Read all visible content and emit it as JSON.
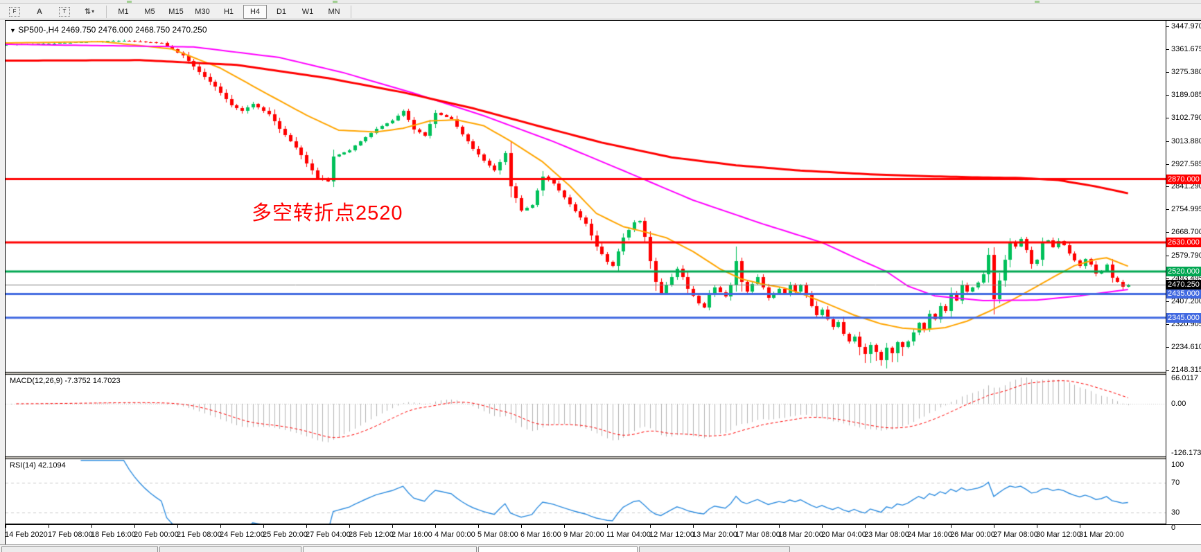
{
  "window": {
    "top_toolbar": {
      "tools": [
        {
          "name": "chart-grid-f-icon",
          "glyph": "F"
        },
        {
          "name": "text-a-icon",
          "glyph": "A"
        },
        {
          "name": "text-label-icon",
          "glyph": "T"
        },
        {
          "name": "cursor-arrows-icon",
          "glyph": "⇅"
        },
        {
          "name": "dropdown-caret-icon",
          "glyph": "▾"
        }
      ],
      "timeframes": [
        "M1",
        "M5",
        "M15",
        "M30",
        "H1",
        "H4",
        "D1",
        "W1",
        "MN"
      ],
      "active_timeframe": "H4"
    }
  },
  "chart": {
    "symbol_header": {
      "dropdown_glyph": "▼",
      "text": "SP500-,H4  2469.750 2476.000 2468.750 2470.250"
    },
    "ohlc": {
      "open": "2469.750",
      "high": "2476.000",
      "low": "2468.750",
      "close": "2470.250"
    },
    "annotation": {
      "text": "多空转折点2520",
      "color": "#FF0000"
    }
  },
  "chart_data": {
    "type": "candlestick+indicators",
    "symbol": "SP500-",
    "timeframe": "H4",
    "price_axis_ticks": [
      "3447.970",
      "3361.675",
      "3275.380",
      "3189.085",
      "3102.790",
      "3013.880",
      "2927.585",
      "2841.290",
      "2754.995",
      "2668.700",
      "2579.790",
      "2493.495",
      "2407.200",
      "2320.905",
      "2234.610",
      "2148.315"
    ],
    "time_axis_labels": [
      "14 Feb 2020",
      "17 Feb 08:00",
      "18 Feb 16:00",
      "20 Feb 00:00",
      "21 Feb 08:00",
      "24 Feb 12:00",
      "25 Feb 20:00",
      "27 Feb 04:00",
      "28 Feb 12:00",
      "2 Mar 16:00",
      "4 Mar 00:00",
      "5 Mar 08:00",
      "6 Mar 16:00",
      "9 Mar 20:00",
      "11 Mar 04:00",
      "12 Mar 12:00",
      "13 Mar 20:00",
      "17 Mar 08:00",
      "18 Mar 20:00",
      "20 Mar 04:00",
      "23 Mar 08:00",
      "24 Mar 16:00",
      "26 Mar 00:00",
      "27 Mar 08:00",
      "30 Mar 12:00",
      "31 Mar 20:00"
    ],
    "horizontal_levels": [
      {
        "price": 2870.0,
        "label": "2870.000",
        "color": "#FF0000",
        "text_color": "#FFFFFF"
      },
      {
        "price": 2630.0,
        "label": "2630.000",
        "color": "#FF0000",
        "text_color": "#FFFFFF"
      },
      {
        "price": 2520.0,
        "label": "2520.000",
        "color": "#00A651",
        "text_color": "#FFFFFF"
      },
      {
        "price": 2435.0,
        "label": "2435.000",
        "color": "#4169E1",
        "text_color": "#FFFFFF"
      },
      {
        "price": 2345.0,
        "label": "2345.000",
        "color": "#4169E1",
        "text_color": "#FFFFFF"
      }
    ],
    "current_price_line": {
      "price": 2470.25,
      "label": "2470.250",
      "line_color": "#808080",
      "tag_bg": "#000000"
    },
    "candle_colors": {
      "up": "#00C05A",
      "down": "#FF0000"
    },
    "bars": {
      "count": 210,
      "anchors_close": [
        [
          0,
          3378
        ],
        [
          7,
          3382
        ],
        [
          14,
          3388
        ],
        [
          22,
          3394
        ],
        [
          29,
          3385
        ],
        [
          33,
          3337
        ],
        [
          36,
          3275
        ],
        [
          39,
          3220
        ],
        [
          42,
          3150
        ],
        [
          44,
          3128
        ],
        [
          46,
          3155
        ],
        [
          49,
          3116
        ],
        [
          51,
          3060
        ],
        [
          54,
          2990
        ],
        [
          56,
          2930
        ],
        [
          58,
          2875
        ],
        [
          60,
          2862
        ],
        [
          61,
          2954
        ],
        [
          64,
          2980
        ],
        [
          66,
          3012
        ],
        [
          69,
          3060
        ],
        [
          72,
          3092
        ],
        [
          74,
          3128
        ],
        [
          76,
          3058
        ],
        [
          78,
          3035
        ],
        [
          80,
          3120
        ],
        [
          83,
          3098
        ],
        [
          85,
          3040
        ],
        [
          87,
          2985
        ],
        [
          89,
          2940
        ],
        [
          91,
          2902
        ],
        [
          93,
          2968
        ],
        [
          94,
          2842
        ],
        [
          96,
          2752
        ],
        [
          98,
          2772
        ],
        [
          100,
          2880
        ],
        [
          102,
          2852
        ],
        [
          104,
          2800
        ],
        [
          106,
          2748
        ],
        [
          108,
          2700
        ],
        [
          110,
          2615
        ],
        [
          112,
          2558
        ],
        [
          113,
          2542
        ],
        [
          115,
          2648
        ],
        [
          117,
          2705
        ],
        [
          118,
          2712
        ],
        [
          119,
          2650
        ],
        [
          120,
          2560
        ],
        [
          121,
          2480
        ],
        [
          122,
          2440
        ],
        [
          123,
          2470
        ],
        [
          125,
          2530
        ],
        [
          126,
          2500
        ],
        [
          127,
          2455
        ],
        [
          129,
          2400
        ],
        [
          130,
          2385
        ],
        [
          131,
          2430
        ],
        [
          132,
          2460
        ],
        [
          134,
          2425
        ],
        [
          135,
          2470
        ],
        [
          136,
          2560
        ],
        [
          137,
          2480
        ],
        [
          138,
          2445
        ],
        [
          140,
          2500
        ],
        [
          141,
          2460
        ],
        [
          142,
          2420
        ],
        [
          144,
          2455
        ],
        [
          145,
          2440
        ],
        [
          146,
          2470
        ],
        [
          147,
          2445
        ],
        [
          148,
          2468
        ],
        [
          149,
          2430
        ],
        [
          150,
          2390
        ],
        [
          151,
          2355
        ],
        [
          152,
          2375
        ],
        [
          153,
          2340
        ],
        [
          154,
          2310
        ],
        [
          155,
          2330
        ],
        [
          156,
          2285
        ],
        [
          157,
          2255
        ],
        [
          158,
          2275
        ],
        [
          159,
          2235
        ],
        [
          160,
          2208
        ],
        [
          161,
          2242
        ],
        [
          162,
          2215
        ],
        [
          163,
          2185
        ],
        [
          164,
          2232
        ],
        [
          165,
          2212
        ],
        [
          166,
          2252
        ],
        [
          167,
          2235
        ],
        [
          168,
          2255
        ],
        [
          169,
          2290
        ],
        [
          170,
          2325
        ],
        [
          171,
          2300
        ],
        [
          172,
          2360
        ],
        [
          173,
          2340
        ],
        [
          174,
          2390
        ],
        [
          175,
          2370
        ],
        [
          176,
          2435
        ],
        [
          177,
          2410
        ],
        [
          178,
          2470
        ],
        [
          179,
          2445
        ],
        [
          180,
          2460
        ],
        [
          181,
          2478
        ],
        [
          182,
          2510
        ],
        [
          183,
          2583
        ],
        [
          184,
          2415
        ],
        [
          185,
          2485
        ],
        [
          186,
          2565
        ],
        [
          187,
          2632
        ],
        [
          188,
          2615
        ],
        [
          189,
          2642
        ],
        [
          190,
          2602
        ],
        [
          191,
          2548
        ],
        [
          192,
          2565
        ],
        [
          193,
          2628
        ],
        [
          194,
          2638
        ],
        [
          195,
          2612
        ],
        [
          196,
          2636
        ],
        [
          197,
          2621
        ],
        [
          198,
          2588
        ],
        [
          199,
          2562
        ],
        [
          200,
          2542
        ],
        [
          201,
          2566
        ],
        [
          202,
          2546
        ],
        [
          203,
          2512
        ],
        [
          204,
          2522
        ],
        [
          205,
          2547
        ],
        [
          206,
          2497
        ],
        [
          207,
          2482
        ],
        [
          208,
          2463
        ],
        [
          209,
          2470.25
        ]
      ]
    },
    "moving_averages": [
      {
        "name": "fast-ma",
        "color": "#FFA500",
        "width": 2,
        "anchors": [
          [
            0,
            3385
          ],
          [
            18,
            3390
          ],
          [
            31,
            3362
          ],
          [
            40,
            3290
          ],
          [
            48,
            3200
          ],
          [
            56,
            3112
          ],
          [
            62,
            3055
          ],
          [
            69,
            3048
          ],
          [
            74,
            3062
          ],
          [
            79,
            3090
          ],
          [
            84,
            3094
          ],
          [
            89,
            3072
          ],
          [
            94,
            3014
          ],
          [
            100,
            2935
          ],
          [
            105,
            2845
          ],
          [
            110,
            2740
          ],
          [
            115,
            2690
          ],
          [
            119,
            2670
          ],
          [
            123,
            2648
          ],
          [
            128,
            2596
          ],
          [
            133,
            2530
          ],
          [
            137,
            2492
          ],
          [
            141,
            2472
          ],
          [
            145,
            2458
          ],
          [
            149,
            2430
          ],
          [
            153,
            2398
          ],
          [
            158,
            2355
          ],
          [
            163,
            2322
          ],
          [
            167,
            2306
          ],
          [
            171,
            2300
          ],
          [
            175,
            2308
          ],
          [
            179,
            2332
          ],
          [
            183,
            2368
          ],
          [
            187,
            2408
          ],
          [
            191,
            2452
          ],
          [
            195,
            2498
          ],
          [
            199,
            2542
          ],
          [
            203,
            2566
          ],
          [
            205,
            2572
          ],
          [
            207,
            2556
          ],
          [
            209,
            2540
          ]
        ]
      },
      {
        "name": "medium-ma",
        "color": "#FF00FF",
        "width": 2,
        "anchors": [
          [
            0,
            3380
          ],
          [
            35,
            3370
          ],
          [
            51,
            3330
          ],
          [
            63,
            3272
          ],
          [
            76,
            3195
          ],
          [
            89,
            3110
          ],
          [
            102,
            3012
          ],
          [
            115,
            2902
          ],
          [
            128,
            2790
          ],
          [
            141,
            2700
          ],
          [
            152,
            2630
          ],
          [
            159,
            2565
          ],
          [
            164,
            2520
          ],
          [
            168,
            2465
          ],
          [
            173,
            2428
          ],
          [
            182,
            2410
          ],
          [
            192,
            2412
          ],
          [
            200,
            2428
          ],
          [
            209,
            2452
          ]
        ]
      },
      {
        "name": "slow-ma",
        "color": "#FF0000",
        "width": 3,
        "anchors": [
          [
            0,
            3318
          ],
          [
            25,
            3320
          ],
          [
            43,
            3302
          ],
          [
            60,
            3252
          ],
          [
            74,
            3198
          ],
          [
            87,
            3138
          ],
          [
            99,
            3072
          ],
          [
            111,
            3008
          ],
          [
            124,
            2952
          ],
          [
            136,
            2922
          ],
          [
            148,
            2902
          ],
          [
            161,
            2888
          ],
          [
            173,
            2880
          ],
          [
            182,
            2876
          ],
          [
            189,
            2874
          ],
          [
            196,
            2866
          ],
          [
            203,
            2842
          ],
          [
            209,
            2816
          ]
        ]
      }
    ],
    "macd": {
      "label": "MACD(12,26,9) -7.3752 14.7023",
      "params": [
        12,
        26,
        9
      ],
      "value": -7.3752,
      "signal": 14.7023,
      "ticks": [
        "66.0117",
        "0.00",
        "-126.173"
      ],
      "histogram_color": "#B4B4B4",
      "signal_color": "#FF0000"
    },
    "rsi": {
      "label": "RSI(14) 42.1094",
      "period": 14,
      "value": 42.1094,
      "ticks": [
        "100",
        "70",
        "30",
        "0"
      ],
      "levels": [
        70,
        30
      ],
      "line_color": "#2E8DE0"
    }
  }
}
